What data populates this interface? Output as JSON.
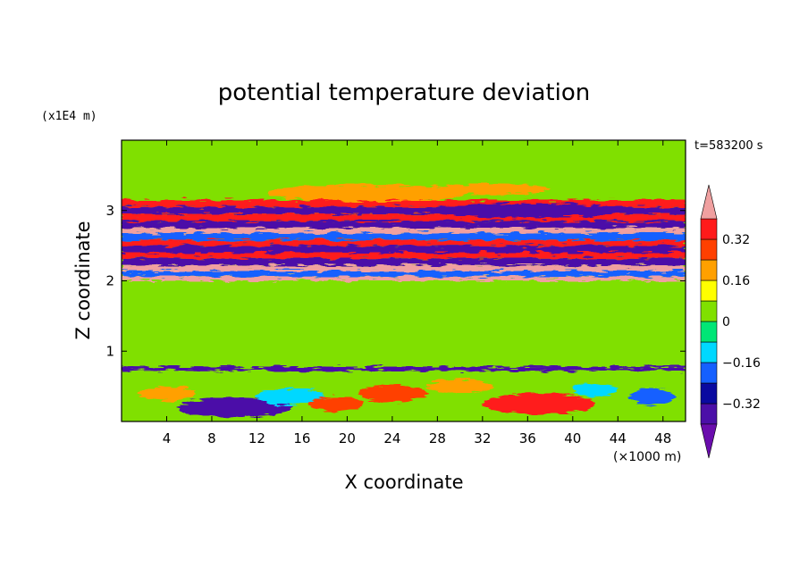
{
  "chart_data": {
    "type": "heatmap",
    "title": "potential temperature deviation",
    "xlabel": "X coordinate",
    "ylabel": "Z coordinate",
    "x_unit": "(×1000 m)",
    "y_unit": "(x1E4 m)",
    "time_label": "t=583200 s",
    "xlim": [
      0,
      50
    ],
    "ylim": [
      0,
      4
    ],
    "x_ticks": [
      4,
      8,
      12,
      16,
      20,
      24,
      28,
      32,
      36,
      40,
      44,
      48
    ],
    "y_ticks": [
      1,
      2,
      3
    ],
    "colorbar": {
      "levels": [
        -0.4,
        -0.32,
        -0.24,
        -0.16,
        -0.08,
        0,
        0.08,
        0.16,
        0.24,
        0.32,
        0.4
      ],
      "labeled_levels": [
        0.32,
        0.16,
        0,
        -0.16,
        -0.32
      ],
      "tick_labels": [
        "0.32",
        "0.16",
        "0",
        "−0.16",
        "−0.32"
      ],
      "extend": "both",
      "colors_low_to_high": [
        "#6a0dad",
        "#4b0fa8",
        "#0a0aa0",
        "#1560ff",
        "#00d8ff",
        "#00e676",
        "#80e000",
        "#ffff00",
        "#ffa000",
        "#ff4000",
        "#ff1a1a",
        "#f0a0a0"
      ]
    },
    "bands": [
      {
        "z": [
          3.05,
          3.15
        ],
        "value": 0.32,
        "x": [
          0,
          50
        ]
      },
      {
        "z": [
          2.95,
          3.05
        ],
        "value": -0.36,
        "x": [
          0,
          50
        ]
      },
      {
        "z": [
          2.85,
          2.95
        ],
        "value": 0.36,
        "x": [
          0,
          50
        ]
      },
      {
        "z": [
          2.75,
          2.85
        ],
        "value": -0.36,
        "x": [
          0,
          50
        ]
      },
      {
        "z": [
          2.68,
          2.75
        ],
        "value": 0.4,
        "x": [
          0,
          50
        ]
      },
      {
        "z": [
          2.58,
          2.68
        ],
        "value": -0.2,
        "x": [
          0,
          50
        ]
      },
      {
        "z": [
          2.5,
          2.58
        ],
        "value": 0.36,
        "x": [
          0,
          50
        ]
      },
      {
        "z": [
          2.4,
          2.5
        ],
        "value": -0.36,
        "x": [
          0,
          50
        ]
      },
      {
        "z": [
          2.32,
          2.4
        ],
        "value": 0.36,
        "x": [
          0,
          50
        ]
      },
      {
        "z": [
          2.22,
          2.32
        ],
        "value": -0.36,
        "x": [
          0,
          50
        ]
      },
      {
        "z": [
          2.14,
          2.22
        ],
        "value": 0.4,
        "x": [
          0,
          50
        ]
      },
      {
        "z": [
          2.06,
          2.14
        ],
        "value": -0.2,
        "x": [
          0,
          50
        ]
      },
      {
        "z": [
          2.0,
          2.06
        ],
        "value": 0.4,
        "x": [
          0,
          50
        ]
      },
      {
        "z": [
          0.72,
          0.78
        ],
        "value": -0.36,
        "x": [
          0,
          50
        ]
      }
    ],
    "blobs": [
      {
        "x": 22,
        "z": 3.25,
        "rx": 9,
        "rz": 0.12,
        "value": 0.16
      },
      {
        "x": 33,
        "z": 3.3,
        "rx": 5,
        "rz": 0.08,
        "value": 0.2
      },
      {
        "x": 36,
        "z": 3.0,
        "rx": 9,
        "rz": 0.1,
        "value": -0.4
      },
      {
        "x": 10,
        "z": 0.2,
        "rx": 5,
        "rz": 0.14,
        "value": -0.4
      },
      {
        "x": 37,
        "z": 0.25,
        "rx": 5,
        "rz": 0.15,
        "value": 0.32
      },
      {
        "x": 47,
        "z": 0.35,
        "rx": 2,
        "rz": 0.12,
        "value": -0.2
      },
      {
        "x": 24,
        "z": 0.4,
        "rx": 3,
        "rz": 0.12,
        "value": 0.24
      },
      {
        "x": 4,
        "z": 0.4,
        "rx": 2.5,
        "rz": 0.1,
        "value": 0.2
      },
      {
        "x": 30,
        "z": 0.5,
        "rx": 3,
        "rz": 0.1,
        "value": 0.16
      },
      {
        "x": 15,
        "z": 0.35,
        "rx": 3,
        "rz": 0.12,
        "value": -0.12
      },
      {
        "x": 19,
        "z": 0.25,
        "rx": 2.5,
        "rz": 0.1,
        "value": 0.24
      },
      {
        "x": 42,
        "z": 0.45,
        "rx": 2,
        "rz": 0.1,
        "value": -0.1
      }
    ],
    "background_value": 0.02,
    "upper_background_value": 0.04
  }
}
